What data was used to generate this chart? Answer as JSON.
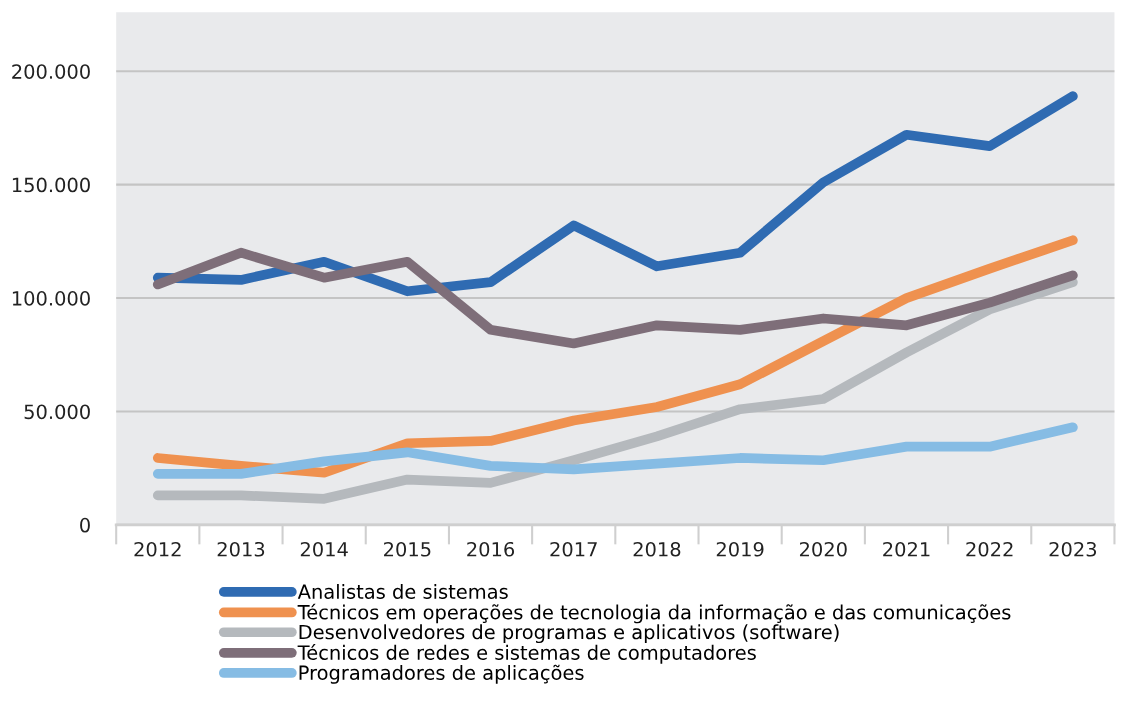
{
  "chart_data": {
    "type": "line",
    "categories": [
      "2012",
      "2013",
      "2014",
      "2015",
      "2016",
      "2017",
      "2018",
      "2019",
      "2020",
      "2021",
      "2022",
      "2023"
    ],
    "series": [
      {
        "name": "Analistas de sistemas",
        "color": "#2f6bb2",
        "values": [
          109000,
          108000,
          116000,
          103000,
          107000,
          132000,
          114000,
          120000,
          151000,
          172000,
          167000,
          189000
        ]
      },
      {
        "name": "Técnicos em operações de tecnologia da informação e das comunicações",
        "color": "#ef914f",
        "values": [
          29500,
          26000,
          23000,
          36000,
          37000,
          46000,
          52000,
          62000,
          81000,
          100000,
          113000,
          125500
        ]
      },
      {
        "name": "Desenvolvedores de programas e aplicativos (software)",
        "color": "#b5b9bd",
        "values": [
          13000,
          13000,
          11500,
          20000,
          18500,
          28500,
          39000,
          51000,
          55500,
          76000,
          95000,
          107000
        ]
      },
      {
        "name": "Técnicos de redes e sistemas de computadores",
        "color": "#7e6e79",
        "values": [
          106000,
          120000,
          109000,
          116000,
          86000,
          80000,
          88000,
          86000,
          91000,
          88000,
          98000,
          110000
        ]
      },
      {
        "name": "Programadores de aplicações",
        "color": "#86bce4",
        "values": [
          22500,
          22500,
          28000,
          32000,
          26000,
          24500,
          27000,
          29500,
          28500,
          34500,
          34500,
          43000
        ]
      }
    ],
    "ylim": [
      0,
      226000
    ],
    "yticks": [
      {
        "value": 0,
        "label": "0"
      },
      {
        "value": 50000,
        "label": "50.000"
      },
      {
        "value": 100000,
        "label": "100.000"
      },
      {
        "value": 150000,
        "label": "150.000"
      },
      {
        "value": 200000,
        "label": "200.000"
      }
    ],
    "grid": "y",
    "legend": "bottom",
    "marker": "none",
    "line_style": "solid"
  }
}
